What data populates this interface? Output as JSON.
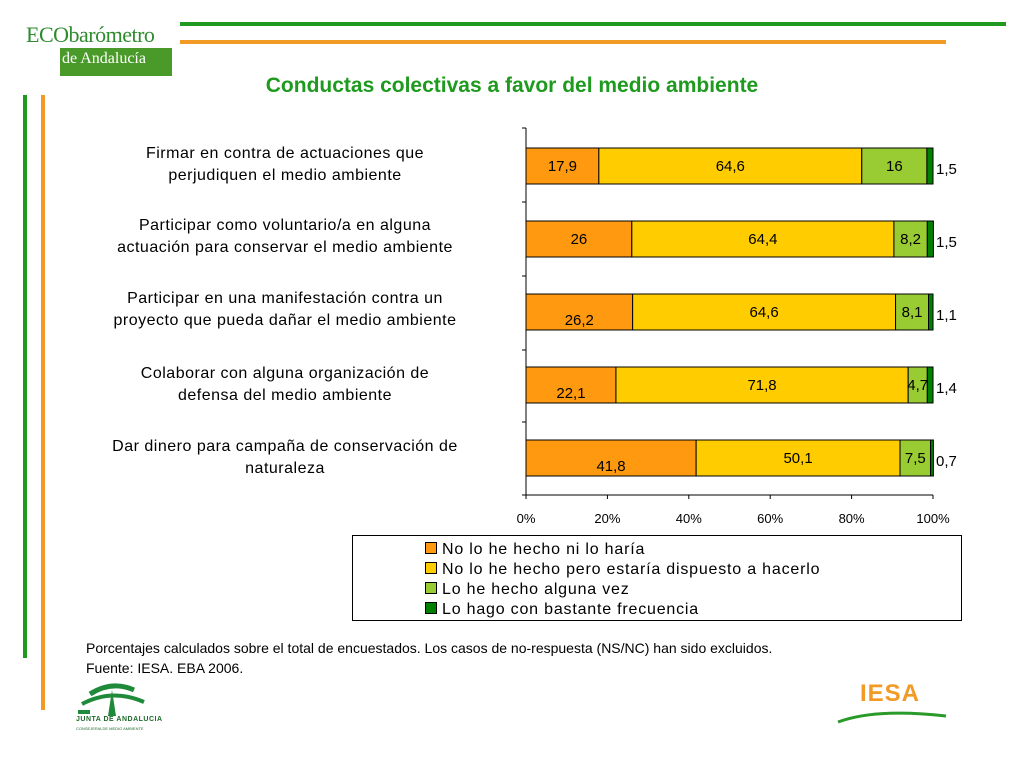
{
  "header": {
    "logo_line1": "ECObarómetro",
    "logo_line2": "de Andalucía"
  },
  "title": "Conductas colectivas a favor del medio ambiente",
  "colors": {
    "green": "#1f9a1f",
    "orange": "#f19a26",
    "series": [
      "#ff9a10",
      "#ffcc00",
      "#99cc33",
      "#008000"
    ]
  },
  "chart_data": {
    "type": "bar",
    "orientation": "horizontal",
    "stacked": true,
    "categories": [
      "Firmar en contra de actuaciones que perjudiquen el medio ambiente",
      "Participar como voluntario/a en alguna actuación para conservar el medio ambiente",
      "Participar en una manifestación contra un proyecto que pueda dañar el medio ambiente",
      "Colaborar con alguna organización de defensa del medio ambiente",
      "Dar dinero para campaña de conservación de naturaleza"
    ],
    "category_lines": [
      [
        "Firmar en contra de actuaciones que",
        "perjudiquen el medio ambiente"
      ],
      [
        "Participar como voluntario/a en alguna",
        "actuación para conservar el medio ambiente"
      ],
      [
        "Participar en una manifestación contra un",
        "proyecto que pueda dañar el medio ambiente"
      ],
      [
        "Colaborar con alguna organización de",
        "defensa del medio ambiente"
      ],
      [
        "Dar dinero para campaña de conservación de",
        "naturaleza"
      ]
    ],
    "series": [
      {
        "name": "No lo he hecho ni lo haría",
        "values": [
          17.9,
          26,
          26.2,
          22.1,
          41.8
        ],
        "labels": [
          "17,9",
          "26",
          "26,2",
          "22,1",
          "41,8"
        ]
      },
      {
        "name": "No lo he hecho pero estaría dispuesto a hacerlo",
        "values": [
          64.6,
          64.4,
          64.6,
          71.8,
          50.1
        ],
        "labels": [
          "64,6",
          "64,4",
          "64,6",
          "71,8",
          "50,1"
        ]
      },
      {
        "name": "Lo he hecho alguna vez",
        "values": [
          16,
          8.2,
          8.1,
          4.7,
          7.5
        ],
        "labels": [
          "16",
          "8,2",
          "8,1",
          "4,7",
          "7,5"
        ]
      },
      {
        "name": "Lo hago con bastante frecuencia",
        "values": [
          1.5,
          1.5,
          1.1,
          1.4,
          0.7
        ],
        "labels": [
          "1,5",
          "1,5",
          "1,1",
          "1,4",
          "0,7"
        ]
      }
    ],
    "xlim": [
      0,
      100
    ],
    "xticks": [
      "0%",
      "20%",
      "40%",
      "60%",
      "80%",
      "100%"
    ],
    "grid": false,
    "legend_position": "bottom"
  },
  "note": {
    "line1": "Porcentajes calculados sobre el total de encuestados. Los casos de no-respuesta (NS/NC) han sido excluidos.",
    "line2": "Fuente: IESA. EBA 2006."
  },
  "footer": {
    "left_logo": "JUNTA DE ANDALUCIA",
    "left_logo_sub": "CONSEJERIA DE MEDIO AMBIENTE",
    "right_logo": "IESA"
  }
}
